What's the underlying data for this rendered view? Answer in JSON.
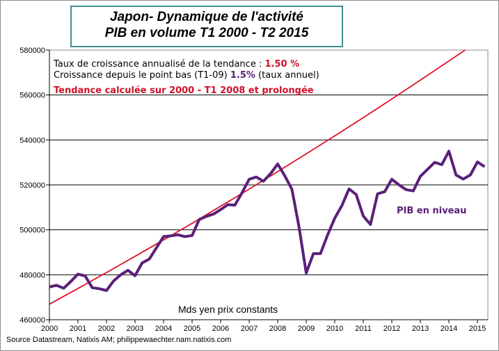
{
  "chart_data": {
    "type": "line",
    "title": [
      "Japon- Dynamique de l'activité",
      "PIB en volume T1 2000 - T2 2015"
    ],
    "ylabel": "Mds yen prix constants",
    "ylim": [
      460000,
      580000
    ],
    "yticks": [
      "460000",
      "480000",
      "500000",
      "520000",
      "540000",
      "560000",
      "580000"
    ],
    "xticks": [
      "2000",
      "2001",
      "2002",
      "2003",
      "2004",
      "2005",
      "2006",
      "2007",
      "2008",
      "2009",
      "2010",
      "2011",
      "2012",
      "2013",
      "2014",
      "2015"
    ],
    "grid": "horizontal",
    "series": [
      {
        "name": "PIB en niveau",
        "color": "#5a2079",
        "frequency": "quarterly",
        "start": "2000 T1",
        "values": [
          474600,
          475300,
          474000,
          477000,
          480300,
          479500,
          474300,
          473800,
          473000,
          477300,
          480000,
          482000,
          479600,
          485300,
          487000,
          492000,
          497000,
          497300,
          497800,
          497000,
          497500,
          504600,
          506000,
          507000,
          509000,
          511200,
          511000,
          516500,
          522500,
          523500,
          521600,
          525000,
          529300,
          524000,
          518000,
          501000,
          480800,
          489400,
          489400,
          497800,
          505200,
          510800,
          518200,
          515700,
          506100,
          502400,
          516000,
          517000,
          522500,
          520000,
          517900,
          517300,
          523800,
          526900,
          530000,
          529000,
          535000,
          524400,
          522600,
          524400,
          530200,
          528100
        ]
      },
      {
        "name": "Tendance",
        "color": "#e0102a",
        "frequency": "annual",
        "start": "2000",
        "values": [
          466900,
          473900,
          481000,
          488200,
          495500,
          502900,
          510500,
          518100,
          525900,
          533800,
          541800,
          549900,
          558200,
          566600,
          575100,
          583700
        ]
      }
    ],
    "annotations": {
      "line1_text": "Taux de croissance annualisé  de la tendance : ",
      "line1_value": "1.50 %",
      "line2_text": "Croissance depuis le point bas (T1-09) ",
      "line2_value": "1.5%",
      "line2_suffix": " (taux annuel)",
      "line3": "Tendance calculée  sur 2000 - T1 2008 et prolongée",
      "series_label": "PIB en niveau"
    },
    "source": "Source Datastream, Natixis AM;  philippewaechter.nam.natixis.com"
  }
}
